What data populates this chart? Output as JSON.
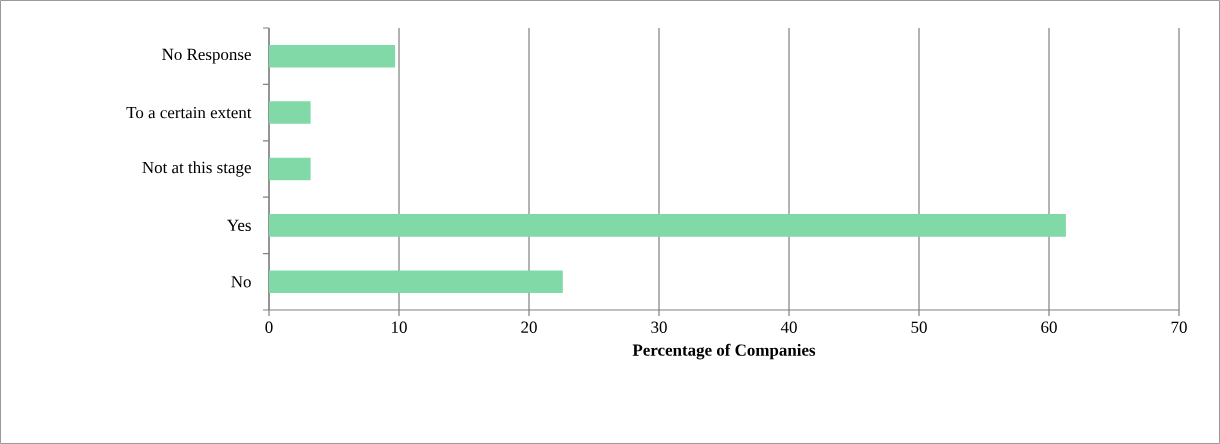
{
  "chart_data": {
    "type": "bar",
    "orientation": "horizontal",
    "xlabel": "Percentage of Companies",
    "categories": [
      "No Response",
      "To a certain extent",
      "Not at this stage",
      "Yes",
      "No"
    ],
    "values": [
      9.7,
      3.2,
      3.2,
      61.3,
      22.6
    ],
    "color": "#82d9a8",
    "xlim": [
      0,
      70
    ],
    "xticks": [
      0,
      10,
      20,
      30,
      40,
      50,
      60,
      70
    ],
    "grid": "x"
  }
}
